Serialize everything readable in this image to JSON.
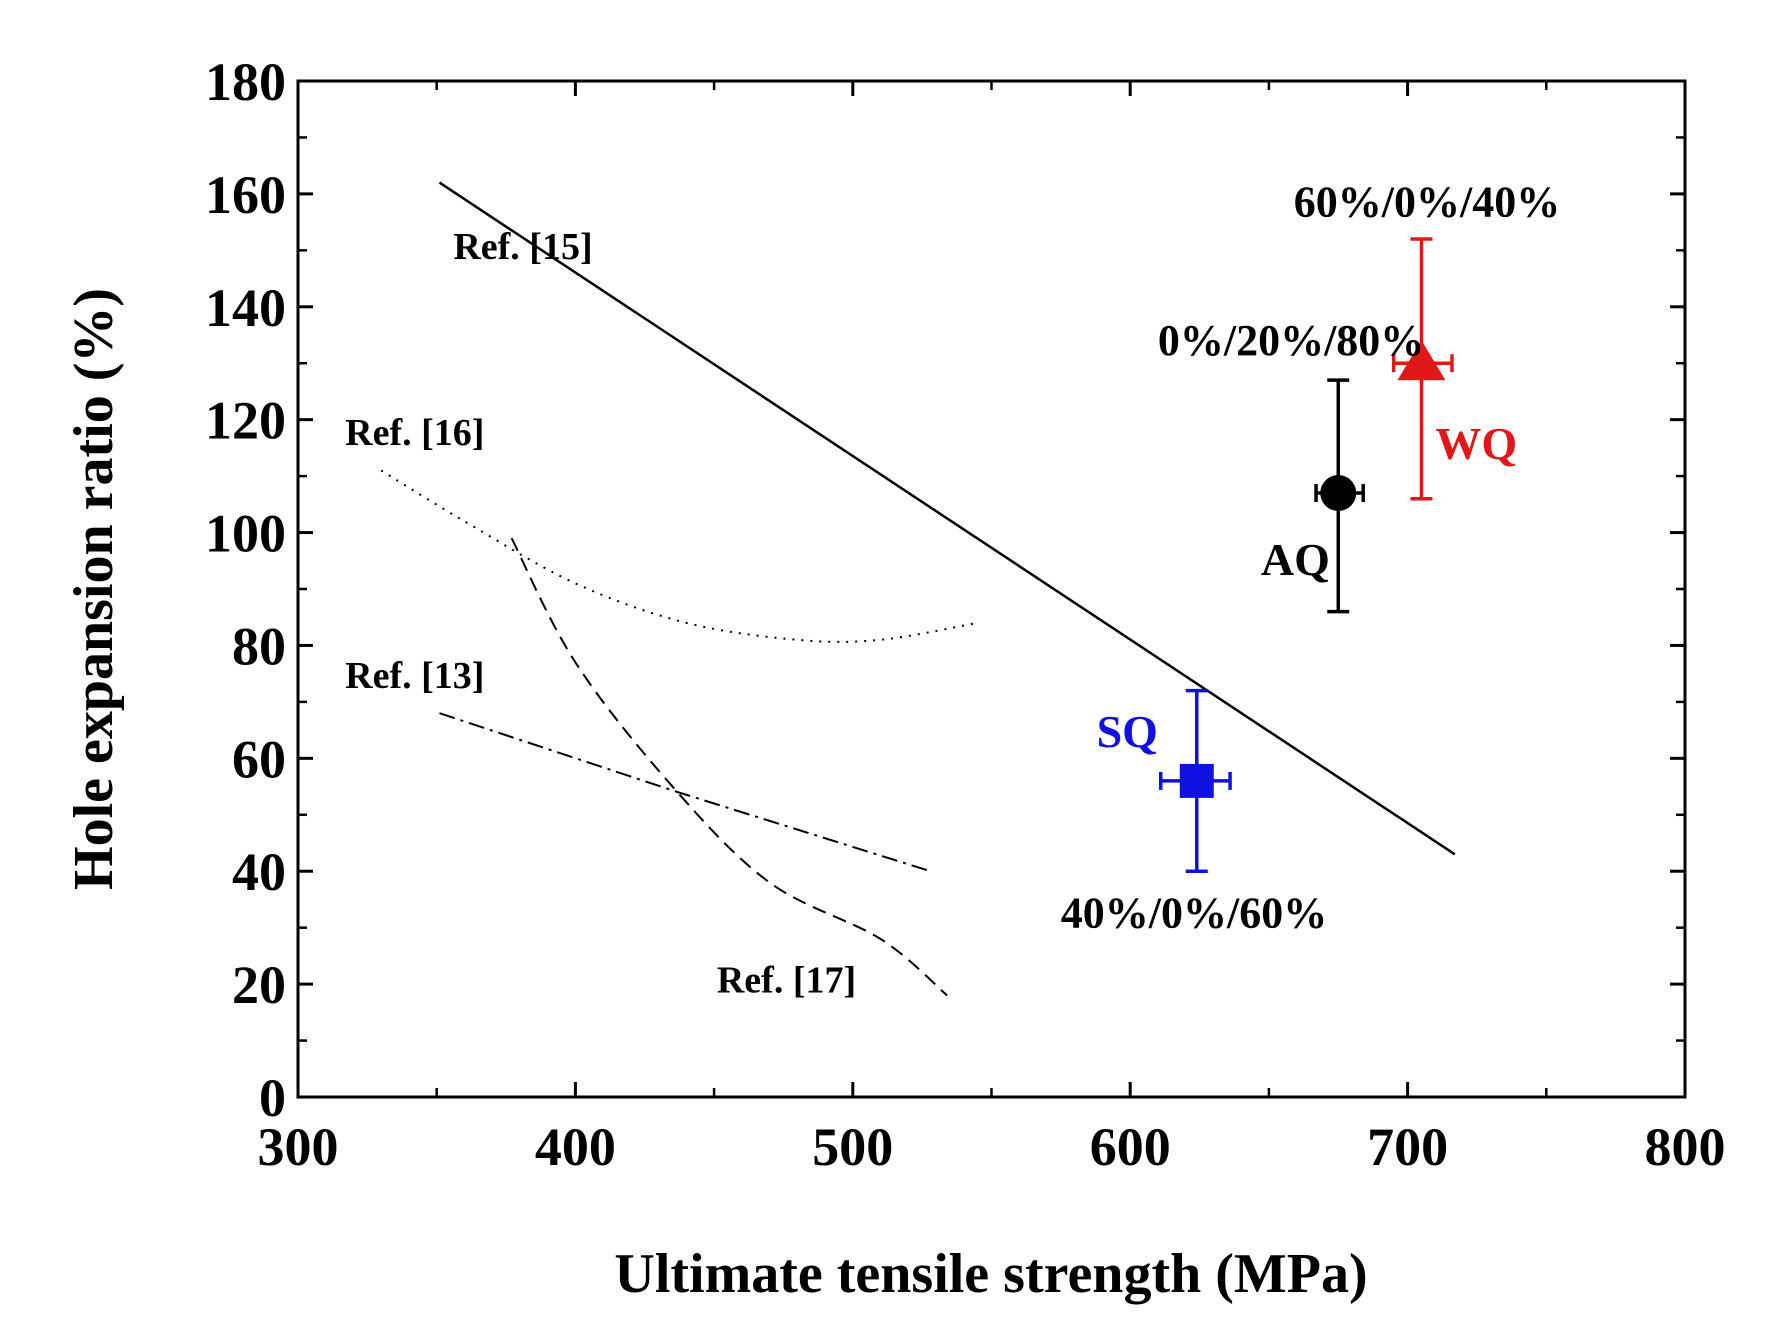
{
  "chart_data": {
    "type": "scatter",
    "title": "",
    "xlabel": "Ultimate tensile strength (MPa)",
    "ylabel": "Hole expansion ratio (%)",
    "xlim": [
      300,
      800
    ],
    "ylim": [
      0,
      180
    ],
    "xticks": [
      300,
      400,
      500,
      600,
      700,
      800
    ],
    "yticks": [
      0,
      20,
      40,
      60,
      80,
      100,
      120,
      140,
      160,
      180
    ],
    "xtick_labels": [
      "300",
      "400",
      "500",
      "600",
      "700",
      "800"
    ],
    "ytick_labels": [
      "0",
      "20",
      "40",
      "60",
      "80",
      "100",
      "120",
      "140",
      "160",
      "180"
    ],
    "grid": false,
    "reference_lines": [
      {
        "name": "Ref. [15]",
        "style": "solid",
        "x": [
          351,
          717
        ],
        "y": [
          162,
          43
        ],
        "label": "Ref. [15]"
      },
      {
        "name": "Ref. [16]",
        "style": "dotted",
        "x": [
          330,
          360,
          400,
          440,
          480,
          510,
          545
        ],
        "y": [
          111,
          102,
          91,
          84,
          81,
          81,
          84
        ],
        "label": "Ref. [16]"
      },
      {
        "name": "Ref. [13]",
        "style": "dashdot",
        "x": [
          351,
          437,
          528
        ],
        "y": [
          68,
          54,
          40
        ],
        "label": "Ref. [13]"
      },
      {
        "name": "Ref. [17]",
        "style": "dashed",
        "x": [
          377,
          400,
          435,
          470,
          510,
          534
        ],
        "y": [
          99,
          77,
          55,
          38,
          28,
          18
        ],
        "label": "Ref. [17]"
      }
    ],
    "series": [
      {
        "name": "SQ",
        "marker": "square",
        "color": "#1010e0",
        "x": 624,
        "y": 56,
        "yerr": [
          40,
          72
        ],
        "xerr": [
          611,
          636
        ],
        "composition": "40%/0%/60%"
      },
      {
        "name": "AQ",
        "marker": "circle",
        "color": "#000000",
        "x": 675,
        "y": 107,
        "yerr": [
          86,
          127
        ],
        "xerr": [
          667,
          684
        ],
        "composition": "0%/20%/80%"
      },
      {
        "name": "WQ",
        "marker": "triangle",
        "color": "#e01818",
        "x": 705,
        "y": 130,
        "yerr": [
          106,
          152
        ],
        "xerr": [
          695,
          716
        ],
        "composition": "60%/0%/40%"
      }
    ]
  }
}
